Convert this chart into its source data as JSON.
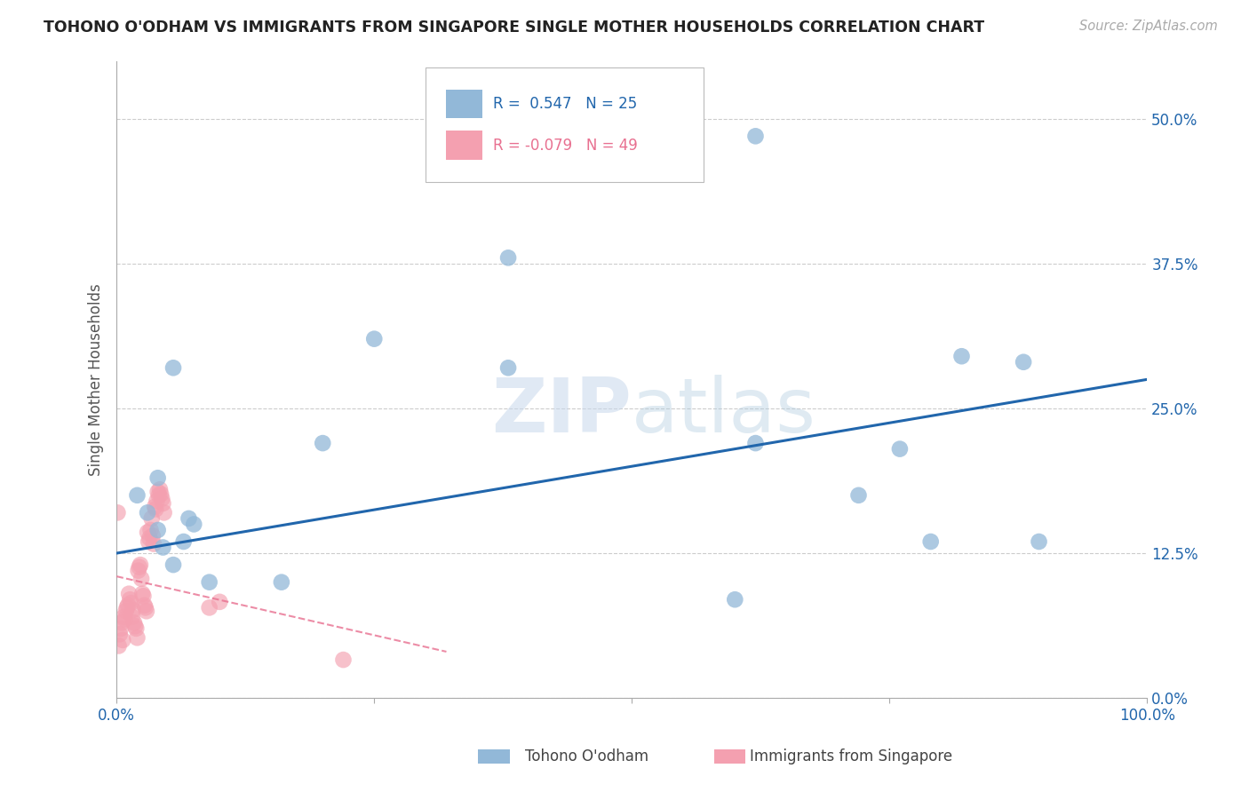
{
  "title": "TOHONO O'ODHAM VS IMMIGRANTS FROM SINGAPORE SINGLE MOTHER HOUSEHOLDS CORRELATION CHART",
  "source": "Source: ZipAtlas.com",
  "ylabel": "Single Mother Households",
  "xlim": [
    0.0,
    1.0
  ],
  "ylim": [
    0.0,
    0.55
  ],
  "yticks": [
    0.0,
    0.125,
    0.25,
    0.375,
    0.5
  ],
  "ytick_labels": [
    "0.0%",
    "12.5%",
    "25.0%",
    "37.5%",
    "50.0%"
  ],
  "xticks": [
    0.0,
    0.25,
    0.5,
    0.75,
    1.0
  ],
  "xtick_labels": [
    "0.0%",
    "",
    "",
    "",
    "100.0%"
  ],
  "blue_color": "#92b8d8",
  "pink_color": "#f4a0b0",
  "line_blue": "#2166ac",
  "line_pink_color": "#e87090",
  "bg_color": "#ffffff",
  "grid_color": "#cccccc",
  "blue_points_x": [
    0.02,
    0.03,
    0.04,
    0.045,
    0.055,
    0.065,
    0.075,
    0.16,
    0.2,
    0.25,
    0.38,
    0.6,
    0.62,
    0.72,
    0.76,
    0.79,
    0.82,
    0.88,
    0.895,
    0.62,
    0.38,
    0.04,
    0.055,
    0.07,
    0.09
  ],
  "blue_points_y": [
    0.175,
    0.16,
    0.145,
    0.13,
    0.115,
    0.135,
    0.15,
    0.1,
    0.22,
    0.31,
    0.38,
    0.085,
    0.22,
    0.175,
    0.215,
    0.135,
    0.295,
    0.29,
    0.135,
    0.485,
    0.285,
    0.19,
    0.285,
    0.155,
    0.1
  ],
  "pink_points_x": [
    0.003,
    0.005,
    0.007,
    0.009,
    0.011,
    0.013,
    0.015,
    0.017,
    0.019,
    0.021,
    0.023,
    0.025,
    0.027,
    0.029,
    0.031,
    0.033,
    0.035,
    0.037,
    0.039,
    0.004,
    0.006,
    0.008,
    0.01,
    0.012,
    0.014,
    0.016,
    0.018,
    0.02,
    0.022,
    0.024,
    0.026,
    0.028,
    0.03,
    0.032,
    0.034,
    0.036,
    0.038,
    0.04,
    0.002,
    0.041,
    0.042,
    0.043,
    0.044,
    0.045,
    0.046,
    0.09,
    0.1,
    0.22,
    0.001
  ],
  "pink_points_y": [
    0.055,
    0.065,
    0.07,
    0.075,
    0.08,
    0.085,
    0.07,
    0.065,
    0.06,
    0.11,
    0.115,
    0.09,
    0.08,
    0.075,
    0.135,
    0.145,
    0.14,
    0.165,
    0.17,
    0.06,
    0.05,
    0.068,
    0.078,
    0.09,
    0.082,
    0.076,
    0.062,
    0.052,
    0.113,
    0.103,
    0.088,
    0.078,
    0.143,
    0.138,
    0.155,
    0.133,
    0.163,
    0.178,
    0.045,
    0.175,
    0.18,
    0.176,
    0.172,
    0.168,
    0.16,
    0.078,
    0.083,
    0.033,
    0.16
  ],
  "blue_trendline_x": [
    0.0,
    1.0
  ],
  "blue_trendline_y": [
    0.125,
    0.275
  ],
  "pink_trendline_x": [
    0.0,
    0.32
  ],
  "pink_trendline_y": [
    0.105,
    0.04
  ]
}
